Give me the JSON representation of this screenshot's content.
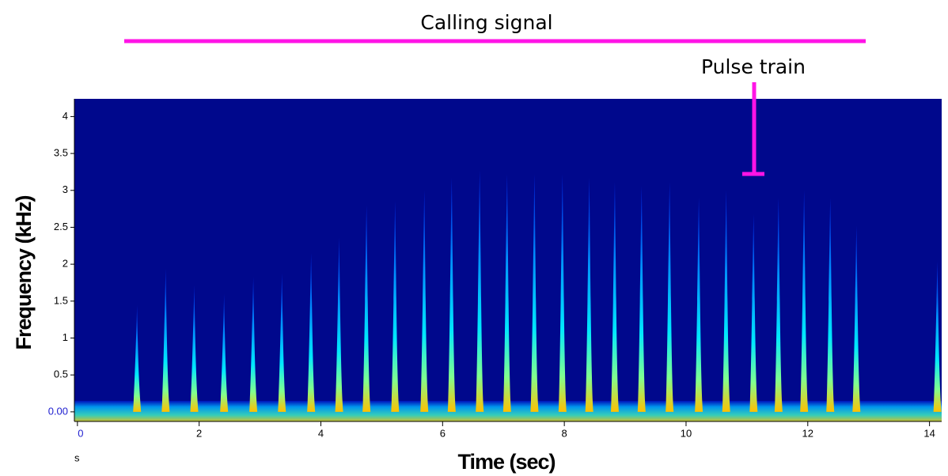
{
  "chart_data": {
    "type": "spectrogram",
    "x_label": "Time (sec)",
    "y_label": "Frequency (kHz)",
    "x_unit_label": "s",
    "annotations": [
      "Calling signal",
      "Pulse train"
    ],
    "x": [
      0.98,
      1.45,
      1.92,
      2.41,
      2.89,
      3.36,
      3.84,
      4.3,
      4.75,
      5.22,
      5.7,
      6.15,
      6.61,
      7.06,
      7.51,
      7.97,
      8.41,
      8.83,
      9.27,
      9.73,
      10.21,
      10.66,
      11.11,
      11.52,
      11.94,
      12.37,
      12.8,
      14.13
    ],
    "values": [
      1.45,
      1.94,
      1.72,
      1.6,
      1.83,
      1.88,
      2.15,
      2.36,
      2.8,
      2.85,
      3.0,
      3.17,
      3.27,
      3.22,
      3.22,
      3.22,
      3.17,
      3.11,
      3.06,
      3.11,
      2.9,
      3.0,
      2.68,
      2.9,
      3.0,
      2.9,
      2.52,
      2.04
    ],
    "xlim": [
      -0.05,
      14.2
    ],
    "ylim": [
      -0.13,
      4.24
    ],
    "xticks": [
      0,
      2,
      4,
      6,
      8,
      10,
      12,
      14
    ],
    "yticks": [
      {
        "value": 0,
        "label": "0.00"
      },
      0.5,
      1,
      1.5,
      2,
      2.5,
      3,
      3.5,
      4
    ],
    "background_color": "#00088c",
    "annotation_color": "#ff14e6"
  }
}
